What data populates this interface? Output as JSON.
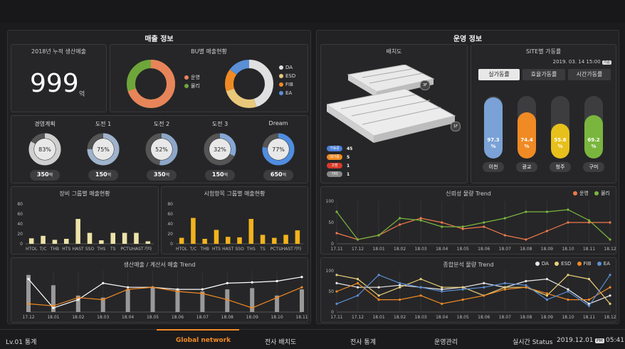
{
  "sales_section": {
    "title": "매출 정보"
  },
  "ops_section": {
    "title": "운영 정보"
  },
  "cumulative": {
    "title": "2018년 누적 생산매출",
    "value": "999",
    "unit": "억"
  },
  "bu": {
    "title": "BU별 매출현황",
    "donut1": {
      "legend": [
        {
          "name": "운영",
          "color": "#e8845a"
        },
        {
          "name": "물리",
          "color": "#6ea63a"
        }
      ],
      "values": [
        70,
        30
      ]
    },
    "donut2": {
      "legend": [
        {
          "name": "DA",
          "color": "#e0e0e0"
        },
        {
          "name": "ESD",
          "color": "#e8c87a"
        },
        {
          "name": "FIB",
          "color": "#f08a24"
        },
        {
          "name": "EA",
          "color": "#5b8fd6"
        }
      ],
      "values": [
        45,
        25,
        15,
        15
      ]
    }
  },
  "plans": [
    {
      "title": "경영계획",
      "pct": 83,
      "pct_label": "83%",
      "amount": "350",
      "unit": "억",
      "color": "#cfcfcf"
    },
    {
      "title": "도전 1",
      "pct": 75,
      "pct_label": "75%",
      "amount": "150",
      "unit": "억",
      "color": "#9fb3cc"
    },
    {
      "title": "도전 2",
      "pct": 52,
      "pct_label": "52%",
      "amount": "350",
      "unit": "억",
      "color": "#8da6c8"
    },
    {
      "title": "도전 3",
      "pct": 32,
      "pct_label": "32%",
      "amount": "150",
      "unit": "억",
      "color": "#86a7d6"
    },
    {
      "title": "Dream",
      "pct": 77,
      "pct_label": "77%",
      "amount": "650",
      "unit": "억",
      "color": "#4f8de0"
    }
  ],
  "chart_data": [
    {
      "type": "bar",
      "title": "장비 그룹별 매출현황",
      "categories": [
        "HTOL",
        "T/C",
        "THB",
        "HTS",
        "HAST",
        "SSO",
        "THS",
        "TS",
        "PCT",
        "UHAST",
        "기타"
      ],
      "values": [
        11,
        16,
        8,
        10,
        50,
        22,
        7,
        22,
        22,
        22,
        5
      ],
      "ylim": [
        0,
        80
      ],
      "yticks": [
        "0",
        "20",
        "40",
        "60",
        "80"
      ],
      "color": "#ede3a8"
    },
    {
      "type": "bar",
      "title": "시험항목 그룹별 매출현황",
      "categories": [
        "HTOL",
        "T/C",
        "THB",
        "HTS",
        "HAST",
        "SSO",
        "THS",
        "TS",
        "PCT",
        "UHAST",
        "기타"
      ],
      "values": [
        12,
        52,
        10,
        28,
        14,
        13,
        50,
        18,
        12,
        18,
        27
      ],
      "ylim": [
        0,
        80
      ],
      "yticks": [
        "0",
        "20",
        "40",
        "60",
        "80"
      ],
      "color": "#f2b21c"
    },
    {
      "type": "line",
      "title": "생산매출 / 계산서 매출 Trend",
      "x": [
        "17.12",
        "18.01",
        "18.02",
        "18.03",
        "18.04",
        "18.05",
        "18.06",
        "18.07",
        "18.08",
        "18.09",
        "18.10",
        "18.11"
      ],
      "series": [
        {
          "values": [
            90,
            65,
            40,
            35,
            55,
            60,
            55,
            50,
            55,
            58,
            40,
            55
          ],
          "color": "#999999",
          "kind": "bar"
        },
        {
          "values": [
            80,
            10,
            30,
            70,
            60,
            60,
            55,
            55,
            70,
            72,
            75,
            85
          ],
          "color": "#ffffff"
        },
        {
          "values": [
            20,
            15,
            35,
            30,
            55,
            60,
            50,
            45,
            30,
            10,
            35,
            60
          ],
          "color": "#f08a24"
        }
      ],
      "ylim": [
        0,
        100
      ]
    },
    {
      "type": "line",
      "title": "신뢰성 물량 Trend",
      "x": [
        "17.11",
        "17.12",
        "18.01",
        "18.02",
        "18.03",
        "18.04",
        "18.05",
        "18.06",
        "18.07",
        "18.08",
        "18.09",
        "18.10",
        "18.11",
        "18.12"
      ],
      "series": [
        {
          "name": "운영",
          "values": [
            25,
            10,
            20,
            45,
            60,
            50,
            35,
            40,
            20,
            10,
            30,
            50,
            50,
            50
          ],
          "color": "#f07a4a"
        },
        {
          "name": "물리",
          "values": [
            75,
            10,
            20,
            60,
            55,
            40,
            40,
            50,
            60,
            75,
            75,
            80,
            55,
            10
          ],
          "color": "#7ab63e"
        }
      ],
      "ylim": [
        0,
        100
      ],
      "yticks": [
        "0",
        "50",
        "100"
      ]
    },
    {
      "type": "line",
      "title": "종합분석 물량 Trend",
      "x": [
        "17.11",
        "17.12",
        "18.01",
        "18.02",
        "18.03",
        "18.04",
        "18.05",
        "18.06",
        "18.07",
        "18.08",
        "18.09",
        "18.10",
        "18.11",
        "18.12"
      ],
      "series": [
        {
          "name": "DA",
          "values": [
            70,
            60,
            60,
            65,
            60,
            55,
            60,
            70,
            60,
            75,
            80,
            55,
            20,
            40
          ],
          "color": "#e8e8e8"
        },
        {
          "name": "ESD",
          "values": [
            90,
            80,
            40,
            60,
            80,
            60,
            60,
            40,
            60,
            60,
            40,
            90,
            80,
            20
          ],
          "color": "#e8d07a"
        },
        {
          "name": "FIB",
          "values": [
            50,
            70,
            30,
            30,
            40,
            20,
            30,
            40,
            55,
            60,
            45,
            30,
            30,
            60
          ],
          "color": "#f08a24"
        },
        {
          "name": "EA",
          "values": [
            20,
            40,
            90,
            70,
            60,
            50,
            55,
            60,
            70,
            65,
            30,
            50,
            15,
            90
          ],
          "color": "#5b8fd6"
        }
      ],
      "ylim": [
        0,
        100
      ],
      "yticks": [
        "0",
        "50",
        "100"
      ]
    }
  ],
  "layout_map": {
    "title": "배치도",
    "floor3": "3F",
    "floor1": "1F",
    "status": [
      {
        "label": "가동중",
        "count": "45",
        "color": "#4a7fd8"
      },
      {
        "label": "대기중",
        "count": "5",
        "color": "#f08a24"
      },
      {
        "label": "고장",
        "count": "1",
        "color": "#d83a2a"
      },
      {
        "label": "기타",
        "count": "1",
        "color": "#888888"
      }
    ]
  },
  "site": {
    "title": "SITE별 가동률",
    "date": "2019. 03. 14 15:00",
    "date_badge": "기준",
    "tabs": [
      "실가동률",
      "효율가동률",
      "시간가동률"
    ],
    "sites": [
      {
        "name": "이천",
        "pct": 97.3,
        "label": "97.3",
        "color": "#7aa2d6"
      },
      {
        "name": "광교",
        "pct": 74.4,
        "label": "74.4",
        "color": "#f08a24"
      },
      {
        "name": "청주",
        "pct": 55.6,
        "label": "55.6",
        "color": "#e8c01c"
      },
      {
        "name": "구미",
        "pct": 69.2,
        "label": "69.2",
        "color": "#7ab63e"
      }
    ],
    "pct_unit": "%"
  },
  "footer": {
    "level": "Lv.01 통계",
    "nav": [
      "Global network",
      "전사 배치도",
      "전사 통계",
      "운영관리"
    ],
    "status_label": "실시간 Status",
    "date": "2019.12.01",
    "ampm": "PM",
    "time": "05:41"
  }
}
